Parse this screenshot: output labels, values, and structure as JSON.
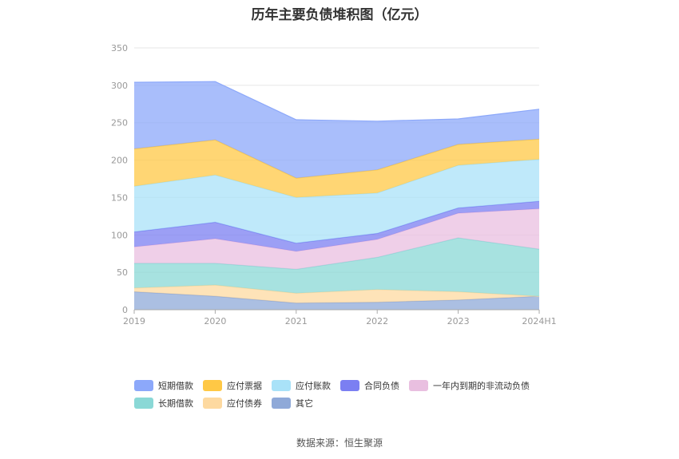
{
  "chart_data": {
    "type": "area",
    "stacked": true,
    "title": "历年主要负债堆积图（亿元）",
    "categories": [
      "2019",
      "2020",
      "2021",
      "2022",
      "2023",
      "2024H1"
    ],
    "ylim": [
      0,
      350
    ],
    "yticks": [
      0,
      50,
      100,
      150,
      200,
      250,
      300,
      350
    ],
    "grid": true,
    "legend_position": "bottom",
    "series": [
      {
        "name": "其它",
        "color": "#8fa9d8",
        "values": [
          24,
          18,
          9,
          10,
          13,
          18
        ]
      },
      {
        "name": "应付债券",
        "color": "#fdd9a0",
        "values": [
          5,
          15,
          13,
          17,
          11,
          0
        ]
      },
      {
        "name": "长期借款",
        "color": "#8ad8d6",
        "values": [
          33,
          29,
          32,
          43,
          72,
          63
        ]
      },
      {
        "name": "一年内到期的非流动负债",
        "color": "#e9bfe0",
        "values": [
          22,
          33,
          24,
          24,
          33,
          54
        ]
      },
      {
        "name": "合同负债",
        "color": "#7b7ff2",
        "values": [
          20,
          22,
          11,
          8,
          7,
          10
        ]
      },
      {
        "name": "应付账款",
        "color": "#a9e2f8",
        "values": [
          61,
          63,
          61,
          54,
          57,
          56
        ]
      },
      {
        "name": "应付票据",
        "color": "#ffc845",
        "values": [
          50,
          47,
          26,
          31,
          28,
          27
        ]
      },
      {
        "name": "短期借款",
        "color": "#8ca8fa",
        "values": [
          89,
          78,
          78,
          65,
          34,
          40
        ]
      }
    ],
    "legend_order": [
      "短期借款",
      "应付票据",
      "应付账款",
      "合同负债",
      "一年内到期的非流动负债",
      "长期借款",
      "应付债券",
      "其它"
    ]
  },
  "source": "数据来源：恒生聚源"
}
